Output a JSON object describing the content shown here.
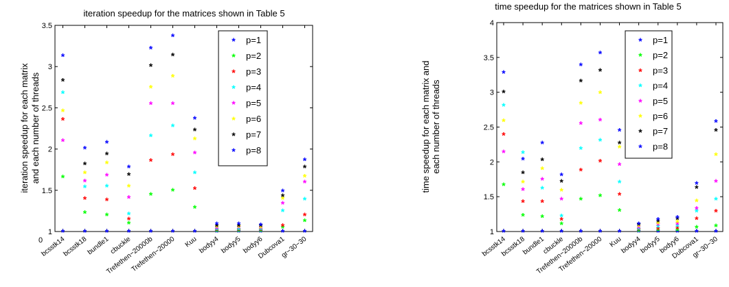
{
  "chart_data": [
    {
      "type": "scatter",
      "title": "iteration speedup for the matrices shown in Table 5",
      "ylabel_lines": [
        "iteration speedup for each matrix",
        "and each number of threads"
      ],
      "xlabel": "",
      "ylim": [
        1,
        3.5
      ],
      "yticks": [
        "1",
        "1.5",
        "2",
        "2.5",
        "3",
        "3.5"
      ],
      "origin_label": "0",
      "categories": [
        "bcsstk14",
        "bcsstk18",
        "bundle1",
        "cbuckle",
        "Trefethen−20000b",
        "Trefethen−20000",
        "Kuu",
        "bodyy4",
        "bodyy5",
        "bodyy6",
        "Dubcova1",
        "gr−30−30"
      ],
      "legend": {
        "position": "top-right"
      },
      "series": [
        {
          "name": "p=1",
          "color": "#0000ff",
          "values": [
            1.0,
            1.0,
            1.0,
            1.0,
            1.0,
            1.0,
            1.0,
            1.0,
            1.0,
            1.0,
            1.0,
            1.0
          ]
        },
        {
          "name": "p=2",
          "color": "#00ff00",
          "values": [
            1.66,
            1.23,
            1.2,
            1.1,
            1.45,
            1.5,
            1.29,
            1.01,
            1.01,
            1.01,
            1.05,
            1.13
          ]
        },
        {
          "name": "p=3",
          "color": "#ff0000",
          "values": [
            2.36,
            1.4,
            1.38,
            1.15,
            1.86,
            1.93,
            1.52,
            1.02,
            1.02,
            1.02,
            1.07,
            1.2
          ]
        },
        {
          "name": "p=4",
          "color": "#00ffff",
          "values": [
            2.68,
            1.54,
            1.55,
            1.21,
            2.16,
            2.28,
            1.71,
            1.03,
            1.03,
            1.03,
            1.25,
            1.39
          ]
        },
        {
          "name": "p=5",
          "color": "#ff00ff",
          "values": [
            2.1,
            1.61,
            1.68,
            1.41,
            2.55,
            2.55,
            1.95,
            1.04,
            1.05,
            1.04,
            1.34,
            1.6
          ]
        },
        {
          "name": "p=6",
          "color": "#ffff00",
          "values": [
            2.46,
            1.71,
            1.83,
            1.55,
            2.75,
            2.88,
            2.12,
            1.06,
            1.06,
            1.05,
            1.4,
            1.67
          ]
        },
        {
          "name": "p=7",
          "color": "#000000",
          "values": [
            2.83,
            1.82,
            1.94,
            1.69,
            3.01,
            3.14,
            2.23,
            1.07,
            1.07,
            1.07,
            1.43,
            1.78
          ]
        },
        {
          "name": "p=8",
          "color": "#0000ff",
          "values": [
            3.13,
            2.01,
            2.08,
            1.78,
            3.22,
            3.37,
            2.37,
            1.09,
            1.09,
            1.08,
            1.49,
            1.87
          ]
        }
      ]
    },
    {
      "type": "scatter",
      "title": "time speedup for the matrices shown in Table 5",
      "ylabel_lines": [
        "time speedup for each matrix and",
        "each number of threads"
      ],
      "xlabel": "",
      "ylim": [
        1,
        4
      ],
      "yticks": [
        "1",
        "1.5",
        "2",
        "2.5",
        "3",
        "3.5",
        "4"
      ],
      "categories": [
        "bcsstk14",
        "bcsstk18",
        "bundle1",
        "cbuckle",
        "Trefethen−20000b",
        "Trefethen−20000",
        "Kuu",
        "bodyy4",
        "bodyy5",
        "bodyy6",
        "Dubcova1",
        "gr−30−30"
      ],
      "legend": {
        "position": "top-right"
      },
      "series": [
        {
          "name": "p=1",
          "color": "#0000ff",
          "values": [
            1.0,
            1.0,
            1.0,
            1.0,
            1.0,
            1.0,
            1.0,
            1.0,
            1.0,
            1.0,
            1.0,
            1.0
          ]
        },
        {
          "name": "p=2",
          "color": "#00ff00",
          "values": [
            1.67,
            1.23,
            1.21,
            1.11,
            1.46,
            1.51,
            1.3,
            1.01,
            1.02,
            1.02,
            1.06,
            1.08
          ]
        },
        {
          "name": "p=3",
          "color": "#ff0000",
          "values": [
            2.39,
            1.43,
            1.43,
            1.17,
            1.88,
            2.01,
            1.53,
            1.03,
            1.04,
            1.05,
            1.18,
            1.29
          ]
        },
        {
          "name": "p=4",
          "color": "#00ffff",
          "values": [
            2.81,
            2.13,
            1.62,
            1.22,
            2.19,
            2.31,
            1.71,
            1.04,
            1.07,
            1.08,
            1.29,
            1.46
          ]
        },
        {
          "name": "p=5",
          "color": "#ff00ff",
          "values": [
            2.14,
            1.6,
            1.75,
            1.46,
            2.55,
            2.6,
            1.96,
            1.06,
            1.1,
            1.11,
            1.33,
            1.72
          ]
        },
        {
          "name": "p=6",
          "color": "#ffff00",
          "values": [
            2.59,
            1.71,
            1.9,
            1.59,
            2.84,
            2.99,
            2.21,
            1.08,
            1.12,
            1.14,
            1.44,
            2.1
          ]
        },
        {
          "name": "p=7",
          "color": "#000000",
          "values": [
            3.0,
            1.84,
            2.03,
            1.72,
            3.16,
            3.31,
            2.27,
            1.1,
            1.15,
            1.18,
            1.63,
            2.45
          ]
        },
        {
          "name": "p=8",
          "color": "#0000ff",
          "values": [
            3.28,
            2.04,
            2.27,
            1.81,
            3.39,
            3.56,
            2.45,
            1.11,
            1.17,
            1.2,
            1.69,
            2.58
          ]
        }
      ]
    }
  ]
}
